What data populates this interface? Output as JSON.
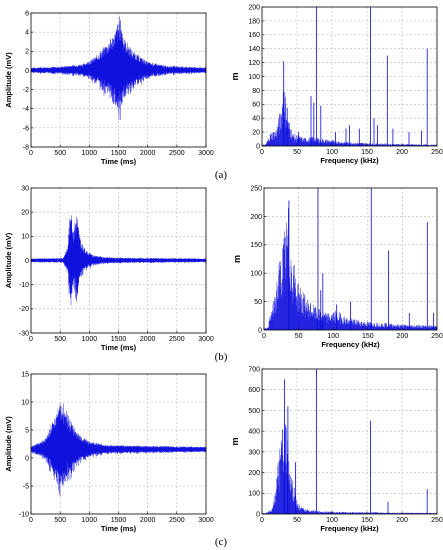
{
  "figure": {
    "labels": [
      "(a)",
      "(b)",
      "(c)"
    ]
  },
  "colors": {
    "signal": "#0a0adc",
    "grid": "#b8b8b8",
    "axis": "#000000"
  },
  "chart_data": [
    {
      "panel": "a-time",
      "type": "line",
      "xlabel": "Time (ms)",
      "ylabel": "Amplitude (mV)",
      "xlim": [
        0,
        3000
      ],
      "ylim": [
        -8,
        6
      ],
      "xticks": [
        0,
        500,
        1000,
        1500,
        2000,
        2500,
        3000
      ],
      "yticks": [
        -8,
        -6,
        -4,
        -2,
        0,
        2,
        4,
        6
      ],
      "grid": true,
      "envelope": {
        "baseline": 0,
        "points": [
          [
            0,
            0.3
          ],
          [
            500,
            0.4
          ],
          [
            900,
            0.7
          ],
          [
            1100,
            1.4
          ],
          [
            1300,
            2.8
          ],
          [
            1450,
            4.2
          ],
          [
            1520,
            5.8
          ],
          [
            1600,
            3.4
          ],
          [
            1750,
            2.0
          ],
          [
            2000,
            0.9
          ],
          [
            2300,
            0.5
          ],
          [
            3000,
            0.3
          ]
        ],
        "lower_scale": 1.1
      }
    },
    {
      "panel": "a-spectrum",
      "type": "bar",
      "xlabel": "Frequency (kHz)",
      "ylabel": "m",
      "xlim": [
        0,
        250
      ],
      "ylim": [
        0,
        200
      ],
      "xticks": [
        0,
        50,
        100,
        150,
        200,
        250
      ],
      "yticks": [
        0,
        20,
        40,
        60,
        80,
        100,
        120,
        140,
        160,
        180,
        200
      ],
      "grid": true,
      "peaks": [
        [
          31,
          122
        ],
        [
          36,
          55
        ],
        [
          52,
          20
        ],
        [
          70,
          72
        ],
        [
          74,
          62
        ],
        [
          78,
          200
        ],
        [
          84,
          58
        ],
        [
          105,
          20
        ],
        [
          120,
          25
        ],
        [
          125,
          30
        ],
        [
          139,
          25
        ],
        [
          155,
          200
        ],
        [
          160,
          40
        ],
        [
          165,
          30
        ],
        [
          179,
          130
        ],
        [
          187,
          25
        ],
        [
          210,
          20
        ],
        [
          228,
          22
        ],
        [
          236,
          140
        ]
      ],
      "envelope": [
        [
          5,
          2
        ],
        [
          12,
          20
        ],
        [
          20,
          25
        ],
        [
          28,
          60
        ],
        [
          31,
          110
        ],
        [
          34,
          70
        ],
        [
          38,
          40
        ],
        [
          45,
          18
        ],
        [
          60,
          12
        ],
        [
          75,
          14
        ],
        [
          90,
          10
        ],
        [
          120,
          6
        ],
        [
          160,
          4
        ],
        [
          200,
          3
        ],
        [
          250,
          2
        ]
      ]
    },
    {
      "panel": "b-time",
      "type": "line",
      "xlabel": "Time (ms)",
      "ylabel": "Amplitude (mV)",
      "xlim": [
        0,
        3000
      ],
      "ylim": [
        -30,
        30
      ],
      "xticks": [
        0,
        500,
        1000,
        1500,
        2000,
        2500,
        3000
      ],
      "yticks": [
        -30,
        -20,
        -10,
        0,
        10,
        20,
        30
      ],
      "grid": true,
      "envelope": {
        "baseline": 0,
        "points": [
          [
            0,
            0.8
          ],
          [
            550,
            1.0
          ],
          [
            620,
            5
          ],
          [
            680,
            22
          ],
          [
            720,
            12
          ],
          [
            780,
            20
          ],
          [
            850,
            8
          ],
          [
            950,
            4
          ],
          [
            1100,
            2
          ],
          [
            1400,
            1.2
          ],
          [
            3000,
            0.8
          ]
        ],
        "lower_scale": 1.1
      }
    },
    {
      "panel": "b-spectrum",
      "type": "bar",
      "xlabel": "Frequency (kHz)",
      "ylabel": "m",
      "xlim": [
        0,
        250
      ],
      "ylim": [
        0,
        250
      ],
      "xticks": [
        0,
        50,
        100,
        150,
        200,
        250
      ],
      "yticks": [
        0,
        50,
        100,
        150,
        200,
        250
      ],
      "grid": true,
      "peaks": [
        [
          36,
          228
        ],
        [
          78,
          250
        ],
        [
          82,
          70
        ],
        [
          85,
          100
        ],
        [
          105,
          45
        ],
        [
          125,
          50
        ],
        [
          155,
          250
        ],
        [
          180,
          140
        ],
        [
          210,
          30
        ],
        [
          236,
          190
        ],
        [
          245,
          30
        ]
      ],
      "envelope": [
        [
          5,
          4
        ],
        [
          15,
          60
        ],
        [
          22,
          125
        ],
        [
          30,
          180
        ],
        [
          35,
          220
        ],
        [
          40,
          140
        ],
        [
          48,
          90
        ],
        [
          60,
          60
        ],
        [
          75,
          40
        ],
        [
          90,
          30
        ],
        [
          105,
          35
        ],
        [
          120,
          22
        ],
        [
          150,
          15
        ],
        [
          200,
          10
        ],
        [
          250,
          8
        ]
      ]
    },
    {
      "panel": "c-time",
      "type": "line",
      "xlabel": "Time (ms)",
      "ylabel": "Amplitude (mV)",
      "xlim": [
        0,
        3000
      ],
      "ylim": [
        -10,
        15
      ],
      "xticks": [
        0,
        500,
        1000,
        1500,
        2000,
        2500,
        3000
      ],
      "yticks": [
        -10,
        -5,
        0,
        5,
        10,
        15
      ],
      "grid": true,
      "envelope": {
        "baseline": 1.5,
        "points": [
          [
            0,
            0.5
          ],
          [
            250,
            2.0
          ],
          [
            400,
            6
          ],
          [
            530,
            9
          ],
          [
            650,
            6
          ],
          [
            800,
            3
          ],
          [
            1000,
            1.5
          ],
          [
            1300,
            0.8
          ],
          [
            3000,
            0.5
          ]
        ],
        "lower_scale": 1.1
      }
    },
    {
      "panel": "c-spectrum",
      "type": "bar",
      "xlabel": "Frequency (kHz)",
      "ylabel": "m",
      "xlim": [
        0,
        250
      ],
      "ylim": [
        0,
        700
      ],
      "xticks": [
        0,
        50,
        100,
        150,
        200,
        250
      ],
      "yticks": [
        0,
        100,
        200,
        300,
        400,
        500,
        600,
        700
      ],
      "grid": true,
      "peaks": [
        [
          32,
          650
        ],
        [
          37,
          520
        ],
        [
          48,
          250
        ],
        [
          78,
          700
        ],
        [
          155,
          450
        ],
        [
          180,
          60
        ],
        [
          236,
          120
        ]
      ],
      "envelope": [
        [
          5,
          5
        ],
        [
          15,
          30
        ],
        [
          25,
          300
        ],
        [
          30,
          480
        ],
        [
          35,
          450
        ],
        [
          40,
          200
        ],
        [
          45,
          170
        ],
        [
          50,
          60
        ],
        [
          60,
          25
        ],
        [
          80,
          15
        ],
        [
          120,
          10
        ],
        [
          250,
          5
        ]
      ]
    }
  ]
}
